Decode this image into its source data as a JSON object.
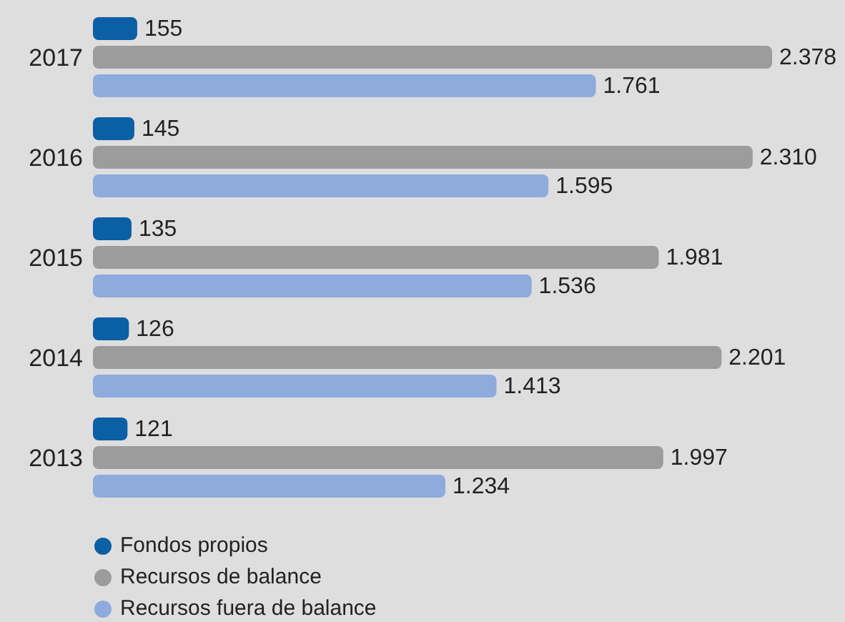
{
  "chart_data": {
    "type": "bar",
    "orientation": "horizontal",
    "categories": [
      "2017",
      "2016",
      "2015",
      "2014",
      "2013"
    ],
    "series": [
      {
        "name": "Fondos propios",
        "color": "#0b5fa5",
        "values": [
          155,
          145,
          135,
          126,
          121
        ],
        "value_labels": [
          "155",
          "145",
          "135",
          "126",
          "121"
        ]
      },
      {
        "name": "Recursos de balance",
        "color": "#9c9c9c",
        "values": [
          2378,
          2310,
          1981,
          2201,
          1997
        ],
        "value_labels": [
          "2.378",
          "2.310",
          "1.981",
          "2.201",
          "1.997"
        ]
      },
      {
        "name": "Recursos fuera de balance",
        "color": "#8faadc",
        "values": [
          1761,
          1595,
          1536,
          1413,
          1234
        ],
        "value_labels": [
          "1.761",
          "1.595",
          "1.536",
          "1.413",
          "1.234"
        ]
      }
    ],
    "legend": "bottom left"
  }
}
